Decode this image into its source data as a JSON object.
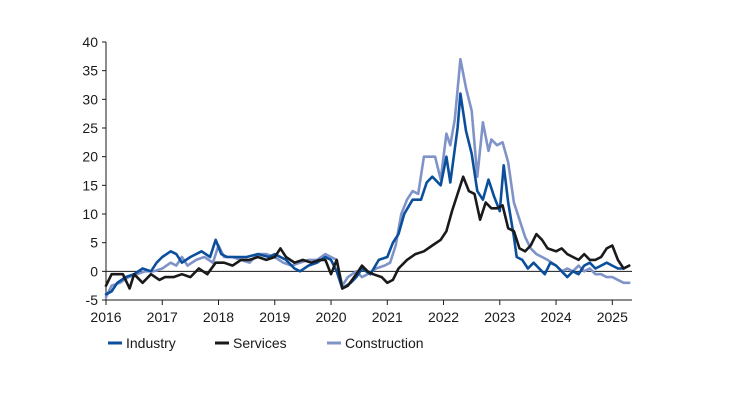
{
  "chart_data": {
    "type": "line",
    "title": "",
    "xlabel": "",
    "ylabel": "",
    "xlim": [
      2016.0,
      2025.35
    ],
    "ylim": [
      -5,
      40
    ],
    "x_ticks": [
      "2016",
      "2017",
      "2018",
      "2019",
      "2020",
      "2021",
      "2022",
      "2023",
      "2024",
      "2025"
    ],
    "y_ticks": [
      "-5",
      "0",
      "5",
      "10",
      "15",
      "20",
      "25",
      "30",
      "35",
      "40"
    ],
    "grid": false,
    "zero_line": true,
    "legend": "bottom-left",
    "series": [
      {
        "name": "Industry",
        "color": "#0b4f9c",
        "points": [
          [
            2016.0,
            -4.0
          ],
          [
            2016.1,
            -3.5
          ],
          [
            2016.2,
            -2.0
          ],
          [
            2016.35,
            -1.0
          ],
          [
            2016.5,
            -0.5
          ],
          [
            2016.65,
            0.5
          ],
          [
            2016.8,
            0.0
          ],
          [
            2016.9,
            1.5
          ],
          [
            2017.0,
            2.5
          ],
          [
            2017.15,
            3.5
          ],
          [
            2017.25,
            3.0
          ],
          [
            2017.35,
            1.5
          ],
          [
            2017.5,
            2.5
          ],
          [
            2017.7,
            3.5
          ],
          [
            2017.85,
            2.5
          ],
          [
            2017.95,
            5.5
          ],
          [
            2018.05,
            3.0
          ],
          [
            2018.15,
            2.5
          ],
          [
            2018.3,
            2.5
          ],
          [
            2018.5,
            2.5
          ],
          [
            2018.7,
            3.0
          ],
          [
            2018.9,
            2.5
          ],
          [
            2019.0,
            3.0
          ],
          [
            2019.2,
            2.0
          ],
          [
            2019.35,
            0.5
          ],
          [
            2019.45,
            0.0
          ],
          [
            2019.6,
            1.0
          ],
          [
            2019.75,
            1.5
          ],
          [
            2019.9,
            2.5
          ],
          [
            2020.0,
            2.0
          ],
          [
            2020.1,
            0.0
          ],
          [
            2020.2,
            -3.0
          ],
          [
            2020.35,
            -2.0
          ],
          [
            2020.45,
            -1.0
          ],
          [
            2020.55,
            0.5
          ],
          [
            2020.7,
            -0.5
          ],
          [
            2020.85,
            2.0
          ],
          [
            2021.0,
            2.5
          ],
          [
            2021.1,
            5.0
          ],
          [
            2021.2,
            6.5
          ],
          [
            2021.3,
            10.0
          ],
          [
            2021.45,
            12.5
          ],
          [
            2021.6,
            12.5
          ],
          [
            2021.7,
            15.5
          ],
          [
            2021.8,
            16.5
          ],
          [
            2021.95,
            15.0
          ],
          [
            2022.05,
            20.0
          ],
          [
            2022.12,
            15.5
          ],
          [
            2022.25,
            25.0
          ],
          [
            2022.3,
            31.0
          ],
          [
            2022.4,
            24.5
          ],
          [
            2022.5,
            20.5
          ],
          [
            2022.6,
            14.0
          ],
          [
            2022.7,
            12.5
          ],
          [
            2022.8,
            16.0
          ],
          [
            2022.9,
            13.0
          ],
          [
            2023.0,
            10.5
          ],
          [
            2023.07,
            18.5
          ],
          [
            2023.15,
            12.0
          ],
          [
            2023.25,
            6.0
          ],
          [
            2023.3,
            2.5
          ],
          [
            2023.4,
            2.0
          ],
          [
            2023.5,
            0.5
          ],
          [
            2023.6,
            1.5
          ],
          [
            2023.7,
            0.5
          ],
          [
            2023.8,
            -0.5
          ],
          [
            2023.9,
            1.5
          ],
          [
            2024.0,
            1.0
          ],
          [
            2024.1,
            0.0
          ],
          [
            2024.2,
            -1.0
          ],
          [
            2024.3,
            0.0
          ],
          [
            2024.4,
            -0.5
          ],
          [
            2024.5,
            1.0
          ],
          [
            2024.6,
            1.5
          ],
          [
            2024.7,
            0.5
          ],
          [
            2024.8,
            1.0
          ],
          [
            2024.9,
            1.5
          ],
          [
            2025.0,
            1.0
          ],
          [
            2025.1,
            0.5
          ],
          [
            2025.2,
            0.5
          ],
          [
            2025.3,
            1.0
          ]
        ]
      },
      {
        "name": "Services",
        "color": "#1a1a1a",
        "points": [
          [
            2016.0,
            -2.5
          ],
          [
            2016.1,
            -0.5
          ],
          [
            2016.2,
            -0.5
          ],
          [
            2016.3,
            -0.5
          ],
          [
            2016.42,
            -3.0
          ],
          [
            2016.5,
            -0.5
          ],
          [
            2016.65,
            -2.0
          ],
          [
            2016.8,
            -0.5
          ],
          [
            2016.95,
            -1.5
          ],
          [
            2017.05,
            -1.0
          ],
          [
            2017.2,
            -1.0
          ],
          [
            2017.35,
            -0.5
          ],
          [
            2017.5,
            -1.0
          ],
          [
            2017.65,
            0.5
          ],
          [
            2017.8,
            -0.5
          ],
          [
            2017.95,
            1.5
          ],
          [
            2018.1,
            1.5
          ],
          [
            2018.25,
            1.0
          ],
          [
            2018.4,
            2.0
          ],
          [
            2018.55,
            2.0
          ],
          [
            2018.7,
            2.5
          ],
          [
            2018.85,
            2.0
          ],
          [
            2019.0,
            2.5
          ],
          [
            2019.1,
            4.0
          ],
          [
            2019.2,
            2.5
          ],
          [
            2019.35,
            1.5
          ],
          [
            2019.5,
            2.0
          ],
          [
            2019.65,
            1.5
          ],
          [
            2019.8,
            2.0
          ],
          [
            2019.9,
            2.0
          ],
          [
            2020.0,
            -0.5
          ],
          [
            2020.1,
            2.0
          ],
          [
            2020.2,
            -3.0
          ],
          [
            2020.3,
            -2.5
          ],
          [
            2020.45,
            -0.5
          ],
          [
            2020.55,
            1.0
          ],
          [
            2020.65,
            0.0
          ],
          [
            2020.75,
            -0.5
          ],
          [
            2020.9,
            -1.0
          ],
          [
            2021.0,
            -2.0
          ],
          [
            2021.1,
            -1.5
          ],
          [
            2021.2,
            0.5
          ],
          [
            2021.35,
            2.0
          ],
          [
            2021.5,
            3.0
          ],
          [
            2021.65,
            3.5
          ],
          [
            2021.8,
            4.5
          ],
          [
            2021.95,
            5.5
          ],
          [
            2022.05,
            7.0
          ],
          [
            2022.15,
            10.5
          ],
          [
            2022.25,
            13.5
          ],
          [
            2022.35,
            16.5
          ],
          [
            2022.45,
            14.0
          ],
          [
            2022.55,
            13.5
          ],
          [
            2022.65,
            9.0
          ],
          [
            2022.75,
            12.0
          ],
          [
            2022.85,
            11.0
          ],
          [
            2022.95,
            11.0
          ],
          [
            2023.05,
            11.5
          ],
          [
            2023.15,
            7.5
          ],
          [
            2023.25,
            7.0
          ],
          [
            2023.35,
            4.0
          ],
          [
            2023.45,
            3.5
          ],
          [
            2023.55,
            4.5
          ],
          [
            2023.65,
            6.5
          ],
          [
            2023.75,
            5.5
          ],
          [
            2023.85,
            4.0
          ],
          [
            2024.0,
            3.5
          ],
          [
            2024.1,
            4.0
          ],
          [
            2024.2,
            3.0
          ],
          [
            2024.3,
            2.5
          ],
          [
            2024.4,
            2.0
          ],
          [
            2024.5,
            3.0
          ],
          [
            2024.6,
            2.0
          ],
          [
            2024.7,
            2.0
          ],
          [
            2024.8,
            2.5
          ],
          [
            2024.9,
            4.0
          ],
          [
            2025.0,
            4.5
          ],
          [
            2025.1,
            2.0
          ],
          [
            2025.2,
            0.5
          ],
          [
            2025.3,
            1.0
          ]
        ]
      },
      {
        "name": "Construction",
        "color": "#7f93c9",
        "points": [
          [
            2016.0,
            -4.5
          ],
          [
            2016.1,
            -2.5
          ],
          [
            2016.25,
            -2.0
          ],
          [
            2016.4,
            -1.0
          ],
          [
            2016.55,
            -0.5
          ],
          [
            2016.7,
            0.0
          ],
          [
            2016.85,
            0.0
          ],
          [
            2017.0,
            0.5
          ],
          [
            2017.15,
            1.5
          ],
          [
            2017.25,
            1.0
          ],
          [
            2017.35,
            2.5
          ],
          [
            2017.45,
            1.0
          ],
          [
            2017.6,
            2.0
          ],
          [
            2017.75,
            2.5
          ],
          [
            2017.9,
            1.5
          ],
          [
            2018.0,
            4.5
          ],
          [
            2018.1,
            2.5
          ],
          [
            2018.25,
            2.5
          ],
          [
            2018.4,
            2.0
          ],
          [
            2018.55,
            1.5
          ],
          [
            2018.7,
            3.0
          ],
          [
            2018.85,
            3.0
          ],
          [
            2019.0,
            2.5
          ],
          [
            2019.15,
            1.5
          ],
          [
            2019.3,
            1.0
          ],
          [
            2019.45,
            1.5
          ],
          [
            2019.6,
            2.0
          ],
          [
            2019.75,
            2.0
          ],
          [
            2019.9,
            3.0
          ],
          [
            2020.0,
            2.5
          ],
          [
            2020.1,
            2.0
          ],
          [
            2020.2,
            -2.5
          ],
          [
            2020.3,
            -1.0
          ],
          [
            2020.45,
            0.0
          ],
          [
            2020.55,
            -1.0
          ],
          [
            2020.65,
            -0.5
          ],
          [
            2020.8,
            0.5
          ],
          [
            2020.95,
            1.0
          ],
          [
            2021.05,
            1.5
          ],
          [
            2021.15,
            4.5
          ],
          [
            2021.25,
            10.0
          ],
          [
            2021.35,
            12.5
          ],
          [
            2021.45,
            14.0
          ],
          [
            2021.55,
            13.5
          ],
          [
            2021.65,
            20.0
          ],
          [
            2021.75,
            20.0
          ],
          [
            2021.85,
            20.0
          ],
          [
            2021.95,
            16.0
          ],
          [
            2022.05,
            24.0
          ],
          [
            2022.12,
            22.0
          ],
          [
            2022.2,
            26.5
          ],
          [
            2022.3,
            37.0
          ],
          [
            2022.4,
            32.0
          ],
          [
            2022.5,
            28.0
          ],
          [
            2022.6,
            16.5
          ],
          [
            2022.7,
            26.0
          ],
          [
            2022.8,
            21.0
          ],
          [
            2022.85,
            23.0
          ],
          [
            2022.95,
            22.0
          ],
          [
            2023.05,
            22.5
          ],
          [
            2023.15,
            19.0
          ],
          [
            2023.25,
            12.0
          ],
          [
            2023.35,
            9.0
          ],
          [
            2023.45,
            6.0
          ],
          [
            2023.55,
            4.0
          ],
          [
            2023.65,
            3.0
          ],
          [
            2023.75,
            2.5
          ],
          [
            2023.85,
            2.0
          ],
          [
            2024.0,
            1.0
          ],
          [
            2024.1,
            0.0
          ],
          [
            2024.2,
            0.5
          ],
          [
            2024.3,
            0.0
          ],
          [
            2024.4,
            1.0
          ],
          [
            2024.5,
            0.0
          ],
          [
            2024.6,
            0.5
          ],
          [
            2024.7,
            -0.5
          ],
          [
            2024.8,
            -0.5
          ],
          [
            2024.9,
            -1.0
          ],
          [
            2025.0,
            -1.0
          ],
          [
            2025.1,
            -1.5
          ],
          [
            2025.2,
            -2.0
          ],
          [
            2025.3,
            -2.0
          ]
        ]
      }
    ]
  }
}
